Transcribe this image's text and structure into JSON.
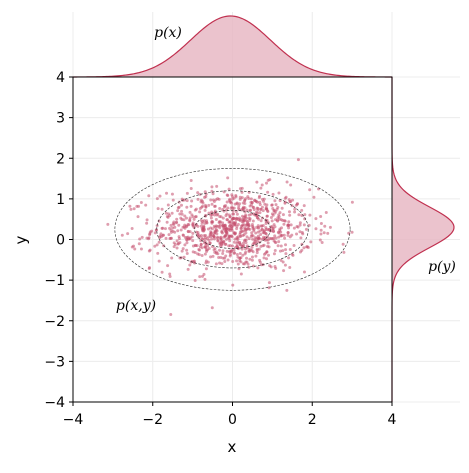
{
  "chart_data": {
    "type": "scatter",
    "xlabel": "x",
    "ylabel": "y",
    "xlim": [
      -4,
      4
    ],
    "ylim": [
      -4,
      4
    ],
    "xticks": [
      "−4",
      "−2",
      "0",
      "2",
      "4"
    ],
    "yticks": [
      "−4",
      "−3",
      "−2",
      "−1",
      "0",
      "1",
      "2",
      "3",
      "4"
    ],
    "xtick_values": [
      -4,
      -2,
      0,
      2,
      4
    ],
    "ytick_values": [
      -4,
      -3,
      -2,
      -1,
      0,
      1,
      2,
      3,
      4
    ],
    "grid": true,
    "joint_label": "p(x,y)",
    "marginal_x_label": "p(x)",
    "marginal_y_label": "p(y)",
    "point_color": "#c44e6e",
    "density_line_color": "#c0304f",
    "density_fill_color": "#e8b8c4",
    "scatter_summary": {
      "n_points": 1000,
      "mean": [
        0.0,
        0.25
      ],
      "std": [
        1.0,
        0.5
      ]
    },
    "contours": [
      {
        "center": [
          0.0,
          0.25
        ],
        "rx": 0.95,
        "ry": 0.47
      },
      {
        "center": [
          0.0,
          0.25
        ],
        "rx": 1.9,
        "ry": 0.95
      },
      {
        "center": [
          0.0,
          0.25
        ],
        "rx": 2.95,
        "ry": 1.5
      }
    ],
    "marginal_x": {
      "mean": -0.05,
      "std": 1.0
    },
    "marginal_y": {
      "mean": 0.3,
      "std": 0.5
    }
  }
}
